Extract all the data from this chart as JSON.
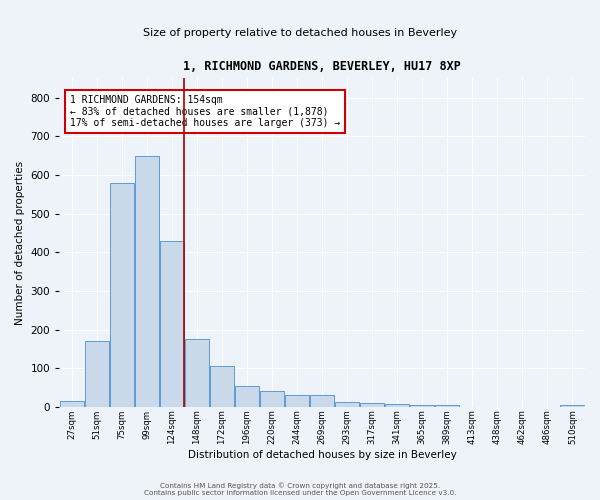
{
  "title": "1, RICHMOND GARDENS, BEVERLEY, HU17 8XP",
  "subtitle": "Size of property relative to detached houses in Beverley",
  "xlabel": "Distribution of detached houses by size in Beverley",
  "ylabel": "Number of detached properties",
  "bin_labels": [
    "27sqm",
    "51sqm",
    "75sqm",
    "99sqm",
    "124sqm",
    "148sqm",
    "172sqm",
    "196sqm",
    "220sqm",
    "244sqm",
    "269sqm",
    "293sqm",
    "317sqm",
    "341sqm",
    "365sqm",
    "389sqm",
    "413sqm",
    "438sqm",
    "462sqm",
    "486sqm",
    "510sqm"
  ],
  "bar_heights": [
    15,
    170,
    580,
    650,
    430,
    175,
    105,
    55,
    40,
    30,
    30,
    13,
    10,
    8,
    5,
    5,
    0,
    0,
    0,
    0,
    5
  ],
  "bar_color": "#c9d9ea",
  "bar_edge_color": "#5b9bd5",
  "redline_bin": 5,
  "annotation_text": "1 RICHMOND GARDENS: 154sqm\n← 83% of detached houses are smaller (1,878)\n17% of semi-detached houses are larger (373) →",
  "annotation_box_color": "#ffffff",
  "annotation_box_edge_color": "#cc0000",
  "ylim": [
    0,
    850
  ],
  "yticks": [
    0,
    100,
    200,
    300,
    400,
    500,
    600,
    700,
    800
  ],
  "background_color": "#eef2f9",
  "grid_color": "#ffffff",
  "footer_line1": "Contains HM Land Registry data © Crown copyright and database right 2025.",
  "footer_line2": "Contains public sector information licensed under the Open Government Licence v3.0."
}
